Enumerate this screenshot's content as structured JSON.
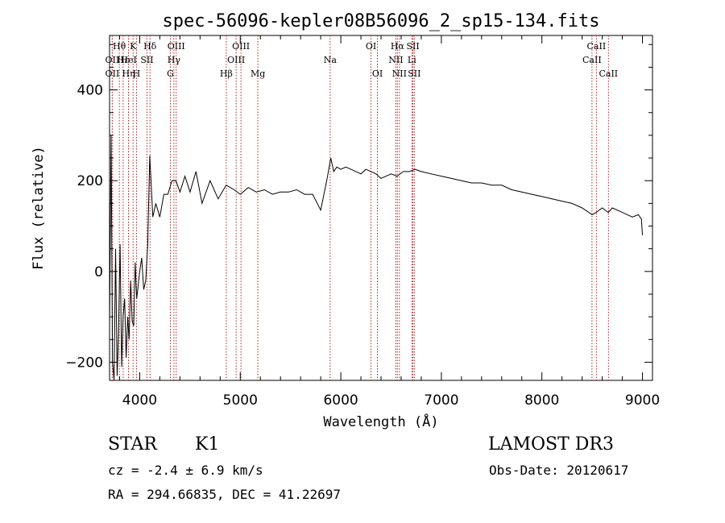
{
  "chart_data": {
    "type": "line",
    "title": "spec-56096-kepler08B56096_2_sp15-134.fits",
    "xlabel": "Wavelength (Å)",
    "ylabel": "Flux (relative)",
    "xlim": [
      3700,
      9100
    ],
    "ylim": [
      -240,
      520
    ],
    "xticks": [
      4000,
      5000,
      6000,
      7000,
      8000,
      9000
    ],
    "yticks": [
      -200,
      0,
      200,
      400
    ],
    "grid": false,
    "series": [
      {
        "name": "flux",
        "x": [
          3700,
          3715,
          3730,
          3745,
          3760,
          3775,
          3790,
          3805,
          3820,
          3835,
          3850,
          3865,
          3880,
          3895,
          3910,
          3925,
          3940,
          3955,
          3970,
          3985,
          4000,
          4020,
          4040,
          4060,
          4080,
          4100,
          4130,
          4160,
          4200,
          4240,
          4280,
          4320,
          4360,
          4400,
          4450,
          4500,
          4560,
          4620,
          4700,
          4780,
          4860,
          4940,
          5000,
          5080,
          5160,
          5240,
          5320,
          5400,
          5480,
          5560,
          5640,
          5720,
          5800,
          5860,
          5900,
          5930,
          5960,
          6000,
          6050,
          6100,
          6150,
          6200,
          6250,
          6300,
          6350,
          6400,
          6450,
          6500,
          6560,
          6620,
          6680,
          6740,
          6800,
          6900,
          7000,
          7100,
          7200,
          7300,
          7400,
          7500,
          7600,
          7700,
          7800,
          7900,
          8000,
          8100,
          8200,
          8300,
          8400,
          8500,
          8540,
          8600,
          8660,
          8700,
          8800,
          8900,
          8960,
          8990,
          9000
        ],
        "y": [
          -120,
          300,
          -200,
          -240,
          50,
          -230,
          -130,
          60,
          -210,
          -100,
          -60,
          -190,
          -100,
          -150,
          -20,
          -110,
          -120,
          20,
          -60,
          -30,
          0,
          30,
          -40,
          -20,
          60,
          255,
          120,
          150,
          120,
          170,
          170,
          200,
          200,
          175,
          210,
          175,
          220,
          150,
          200,
          160,
          190,
          180,
          170,
          185,
          175,
          180,
          170,
          175,
          175,
          180,
          170,
          170,
          135,
          200,
          250,
          220,
          230,
          225,
          230,
          225,
          220,
          215,
          225,
          220,
          215,
          205,
          210,
          215,
          210,
          220,
          220,
          225,
          220,
          215,
          210,
          205,
          200,
          195,
          195,
          190,
          190,
          180,
          175,
          170,
          165,
          160,
          155,
          150,
          140,
          125,
          130,
          140,
          130,
          140,
          130,
          120,
          125,
          115,
          80
        ]
      }
    ],
    "lines": [
      {
        "name": "Hθ",
        "wl": 3797,
        "row": 1
      },
      {
        "name": "OII",
        "wl": 3727,
        "row": 2
      },
      {
        "name": "OII",
        "wl": 3727,
        "row": 3
      },
      {
        "name": "Hε",
        "wl": 3835,
        "row": 2
      },
      {
        "name": "Hη",
        "wl": 3889,
        "row": 3
      },
      {
        "name": "K",
        "wl": 3934,
        "row": 1
      },
      {
        "name": "HeI",
        "wl": 3889,
        "row": 2
      },
      {
        "name": "H",
        "wl": 3968,
        "row": 3
      },
      {
        "name": "Hδ",
        "wl": 4102,
        "row": 1
      },
      {
        "name": "SII",
        "wl": 4072,
        "row": 2
      },
      {
        "name": "OIII",
        "wl": 4363,
        "row": 1
      },
      {
        "name": "Hγ",
        "wl": 4340,
        "row": 2
      },
      {
        "name": "G",
        "wl": 4305,
        "row": 3
      },
      {
        "name": "Hβ",
        "wl": 4861,
        "row": 3
      },
      {
        "name": "OIII",
        "wl": 4959,
        "row": 2
      },
      {
        "name": "OIII",
        "wl": 5007,
        "row": 1
      },
      {
        "name": "Mg",
        "wl": 5175,
        "row": 3
      },
      {
        "name": "Na",
        "wl": 5894,
        "row": 2
      },
      {
        "name": "OI",
        "wl": 6300,
        "row": 1
      },
      {
        "name": "OI",
        "wl": 6364,
        "row": 3
      },
      {
        "name": "Hα",
        "wl": 6563,
        "row": 1
      },
      {
        "name": "NII",
        "wl": 6548,
        "row": 2
      },
      {
        "name": "NII",
        "wl": 6583,
        "row": 3
      },
      {
        "name": "SII",
        "wl": 6717,
        "row": 1
      },
      {
        "name": "Li",
        "wl": 6707,
        "row": 2
      },
      {
        "name": "SII",
        "wl": 6731,
        "row": 3
      },
      {
        "name": "CaII",
        "wl": 8542,
        "row": 1
      },
      {
        "name": "CaII",
        "wl": 8498,
        "row": 2
      },
      {
        "name": "CaII",
        "wl": 8662,
        "row": 3
      }
    ]
  },
  "info": {
    "object_class": "STAR",
    "subclass": "K1",
    "survey": "LAMOST DR3",
    "cz": "cz = -2.4 ± 6.9 km/s",
    "obs_date": "Obs-Date: 20120617",
    "coords": "RA = 294.66835, DEC =  41.22697"
  },
  "colors": {
    "axis": "#000000",
    "spectrum": "#000000",
    "lines": "#b22222"
  }
}
